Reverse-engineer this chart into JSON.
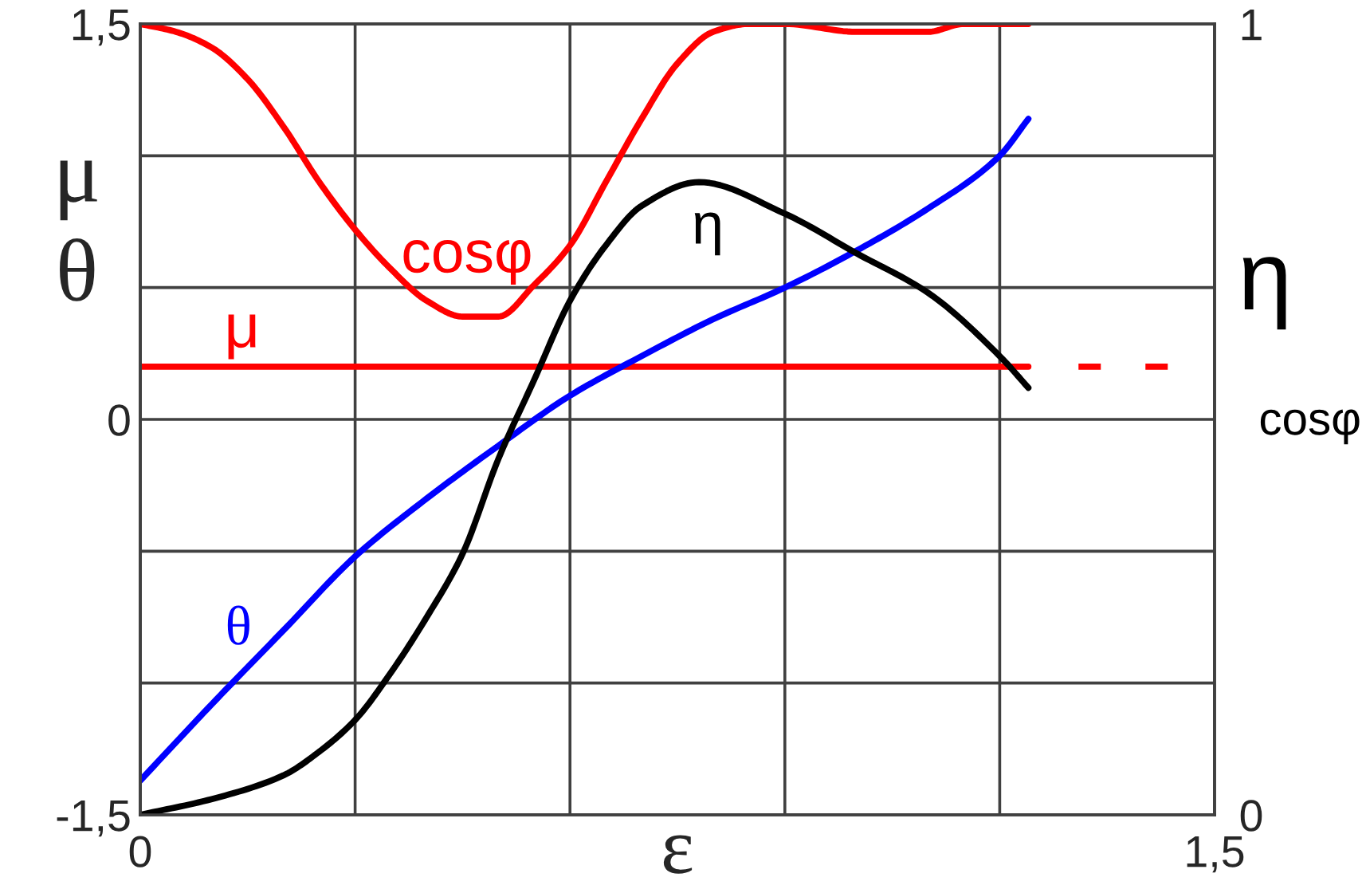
{
  "chart_data": {
    "type": "line",
    "xlabel": "ε",
    "ylabel": "μ\nθ",
    "y2label": "η\ncosφ",
    "xlim": [
      0,
      1.5
    ],
    "xticks": [
      0,
      {
        "value": 0.3,
        "label": null
      },
      {
        "value": 0.6,
        "label": null
      },
      {
        "value": 0.9,
        "label": null
      },
      {
        "value": 1.2,
        "label": null
      },
      {
        "value": 1.5,
        "label": "1,5"
      }
    ],
    "ylim": [
      -1.5,
      1.5
    ],
    "yticks": [
      {
        "value": -1.5,
        "label": "-1,5"
      },
      {
        "value": -1,
        "label": null
      },
      {
        "value": -0.5,
        "label": null
      },
      0,
      {
        "value": 0.5,
        "label": null
      },
      {
        "value": 1,
        "label": null
      },
      {
        "value": 1.5,
        "label": "1,5"
      }
    ],
    "y2lim": [
      0,
      1
    ],
    "y2ticks": [
      0,
      1
    ],
    "grid": true,
    "series": [
      {
        "name": "cosφ",
        "color": "#ff0000",
        "axis": "y2",
        "x": [
          0,
          0.05,
          0.1,
          0.15,
          0.2,
          0.25,
          0.3,
          0.35,
          0.4,
          0.45,
          0.5,
          0.55,
          0.6,
          0.65,
          0.7,
          0.75,
          0.8,
          0.85,
          0.9,
          1.0,
          1.05,
          1.1,
          1.15,
          1.24
        ],
        "values": [
          1.0,
          0.99,
          0.97,
          0.93,
          0.87,
          0.8,
          0.74,
          0.69,
          0.65,
          0.63,
          0.63,
          0.67,
          0.72,
          0.8,
          0.88,
          0.95,
          0.99,
          1.0,
          1.0,
          0.99,
          0.99,
          0.99,
          1.0,
          1.0
        ]
      },
      {
        "name": "μ",
        "color": "#ff0000",
        "x": [
          0,
          1.24
        ],
        "values": [
          0.2,
          0.2
        ]
      },
      {
        "color": "#ff0000",
        "line_style": "dashed",
        "x": [
          1.31,
          1.44
        ],
        "values": [
          0.2,
          0.2
        ]
      },
      {
        "name": "θ",
        "color": "#0000ff",
        "x": [
          0,
          0.1,
          0.2,
          0.3,
          0.4,
          0.5,
          0.6,
          0.7,
          0.8,
          0.9,
          1.0,
          1.1,
          1.2,
          1.24
        ],
        "values": [
          -1.37,
          -1.08,
          -0.8,
          -0.52,
          -0.3,
          -0.1,
          0.09,
          0.24,
          0.38,
          0.5,
          0.64,
          0.8,
          1.0,
          1.14
        ]
      },
      {
        "name": "η",
        "color": "#000000",
        "axis": "y2",
        "x": [
          0,
          0.1,
          0.2,
          0.25,
          0.3,
          0.35,
          0.4,
          0.45,
          0.5,
          0.55,
          0.6,
          0.65,
          0.7,
          0.78,
          0.9,
          1.0,
          1.1,
          1.2,
          1.24
        ],
        "values": [
          0,
          0.02,
          0.05,
          0.08,
          0.12,
          0.18,
          0.25,
          0.33,
          0.45,
          0.55,
          0.65,
          0.72,
          0.77,
          0.8,
          0.76,
          0.71,
          0.66,
          0.58,
          0.54
        ]
      }
    ]
  }
}
